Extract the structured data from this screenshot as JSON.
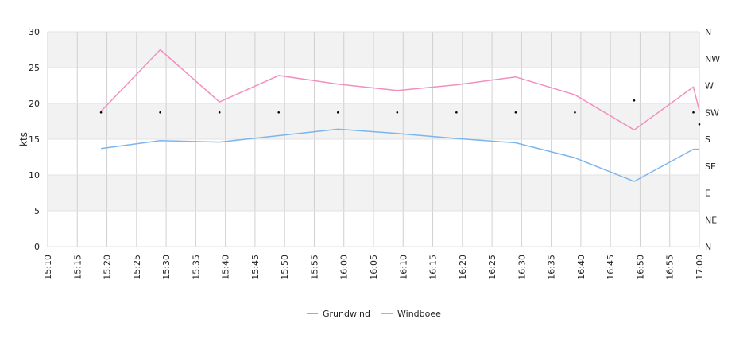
{
  "chart_data": {
    "type": "line",
    "ylabel": "kts",
    "ylim": [
      0,
      30
    ],
    "y_ticks": [
      0,
      5,
      10,
      15,
      20,
      25,
      30
    ],
    "x_ticks": [
      "15:10",
      "15:15",
      "15:20",
      "15:25",
      "15:30",
      "15:35",
      "15:40",
      "15:45",
      "15:50",
      "15:55",
      "16:00",
      "16:05",
      "16:10",
      "16:15",
      "16:20",
      "16:25",
      "16:30",
      "16:35",
      "16:40",
      "16:45",
      "16:50",
      "16:55",
      "17:00"
    ],
    "x_range": [
      "15:10",
      "17:00"
    ],
    "right_axis": {
      "labels": [
        "N",
        "NE",
        "E",
        "SE",
        "S",
        "SW",
        "W",
        "NW",
        "N"
      ],
      "range_degrees": [
        0,
        360
      ]
    },
    "grid": true,
    "legend_position": "bottom",
    "series": [
      {
        "name": "Grundwind",
        "color": "#7cb5ec",
        "x": [
          "15:19",
          "15:29",
          "15:39",
          "15:49",
          "15:59",
          "16:09",
          "16:19",
          "16:29",
          "16:39",
          "16:49",
          "16:59",
          "17:00"
        ],
        "values": [
          13.7,
          14.8,
          14.6,
          15.5,
          16.4,
          15.8,
          15.1,
          14.5,
          12.4,
          9.1,
          13.6,
          13.6
        ]
      },
      {
        "name": "Windboee",
        "color": "#f28fbf",
        "x": [
          "15:19",
          "15:29",
          "15:39",
          "15:49",
          "15:59",
          "16:09",
          "16:19",
          "16:29",
          "16:39",
          "16:49",
          "16:59",
          "17:00"
        ],
        "values": [
          18.9,
          27.5,
          20.2,
          23.9,
          22.7,
          21.8,
          22.6,
          23.7,
          21.2,
          16.3,
          22.3,
          19.0
        ]
      }
    ],
    "direction_points": {
      "x": [
        "15:19",
        "15:29",
        "15:39",
        "15:49",
        "15:59",
        "16:09",
        "16:19",
        "16:29",
        "16:39",
        "16:49",
        "16:59",
        "17:00"
      ],
      "values": [
        225,
        225,
        225,
        225,
        225,
        225,
        225,
        225,
        225,
        245,
        225,
        205
      ]
    }
  }
}
